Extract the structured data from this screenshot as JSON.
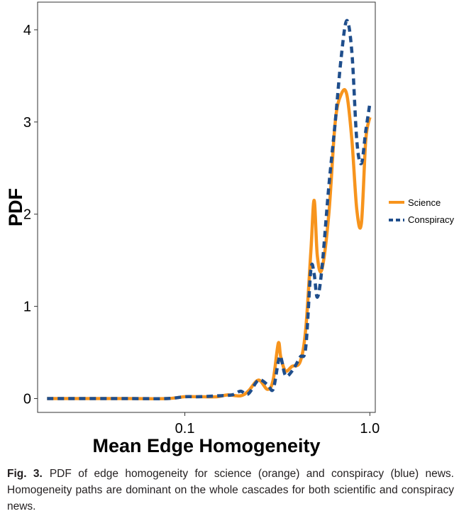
{
  "chart_data": {
    "type": "line",
    "xlabel": "Mean Edge Homogeneity",
    "ylabel": "PDF",
    "x_scale": "log",
    "xlim": [
      0.016,
      1.07
    ],
    "ylim": [
      -0.15,
      4.3
    ],
    "x_ticks": [
      0.1,
      1.0
    ],
    "x_tick_labels": [
      "0.1",
      "1.0"
    ],
    "y_ticks": [
      0,
      1,
      2,
      3,
      4
    ],
    "y_tick_labels": [
      "0",
      "1",
      "2",
      "3",
      "4"
    ],
    "grid": false,
    "legend_position": "right",
    "series": [
      {
        "name": "Science",
        "color": "#f7941d",
        "style": "solid",
        "x": [
          0.018,
          0.03,
          0.05,
          0.08,
          0.1,
          0.12,
          0.15,
          0.17,
          0.2,
          0.22,
          0.25,
          0.28,
          0.3,
          0.32,
          0.33,
          0.35,
          0.38,
          0.42,
          0.45,
          0.48,
          0.5,
          0.52,
          0.55,
          0.6,
          0.65,
          0.7,
          0.75,
          0.8,
          0.85,
          0.9,
          0.95,
          1.0
        ],
        "values": [
          0.0,
          0.0,
          0.0,
          0.0,
          0.02,
          0.02,
          0.02,
          0.04,
          0.03,
          0.08,
          0.2,
          0.1,
          0.2,
          0.6,
          0.45,
          0.3,
          0.35,
          0.4,
          0.75,
          1.6,
          2.15,
          1.55,
          1.4,
          2.0,
          3.0,
          3.3,
          3.3,
          2.8,
          2.05,
          1.9,
          2.8,
          3.05
        ]
      },
      {
        "name": "Conspiracy",
        "color": "#1f4e8c",
        "style": "dashed",
        "x": [
          0.018,
          0.03,
          0.05,
          0.08,
          0.1,
          0.12,
          0.15,
          0.18,
          0.2,
          0.22,
          0.25,
          0.28,
          0.3,
          0.32,
          0.33,
          0.35,
          0.38,
          0.42,
          0.45,
          0.48,
          0.5,
          0.52,
          0.55,
          0.6,
          0.65,
          0.7,
          0.75,
          0.8,
          0.85,
          0.9,
          0.95,
          1.0
        ],
        "values": [
          0.0,
          0.0,
          0.0,
          0.0,
          0.02,
          0.02,
          0.03,
          0.04,
          0.08,
          0.05,
          0.2,
          0.15,
          0.1,
          0.4,
          0.45,
          0.25,
          0.3,
          0.45,
          0.55,
          1.4,
          1.35,
          1.1,
          1.4,
          2.3,
          3.0,
          3.7,
          4.1,
          3.75,
          2.8,
          2.55,
          2.9,
          3.2
        ]
      }
    ]
  },
  "caption": {
    "label": "Fig. 3.",
    "text": "PDF of edge homogeneity for science (orange) and conspiracy (blue) news. Homogeneity paths are dominant on the whole cascades for both scientific and conspiracy news."
  }
}
